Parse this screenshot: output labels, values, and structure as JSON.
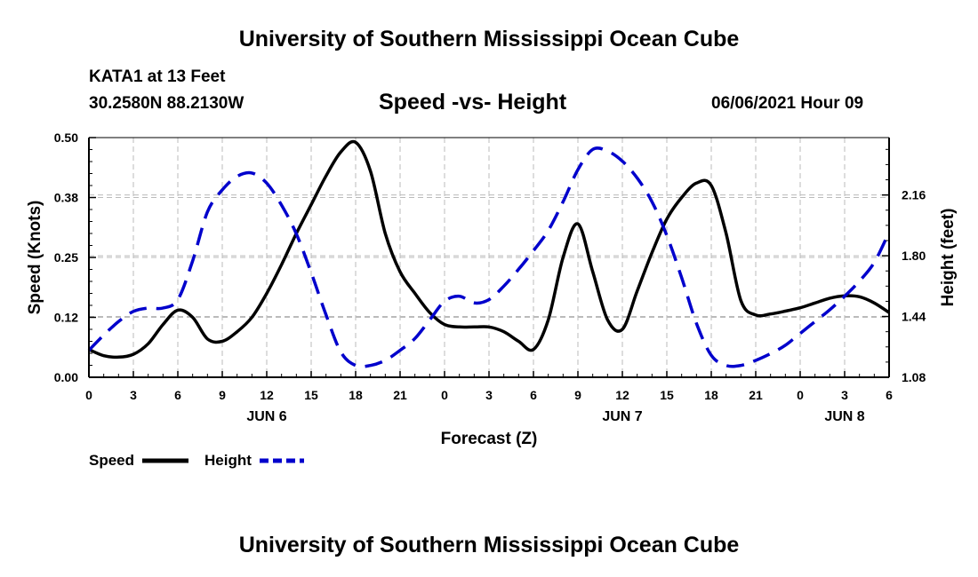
{
  "header": {
    "title": "University of Southern Mississippi Ocean Cube",
    "station": "KATA1 at 13 Feet",
    "coordinates": "30.2580N  88.2130W",
    "subtitle": "Speed -vs- Height",
    "datetime": "06/06/2021 Hour 09"
  },
  "footer": {
    "title": "University of Southern Mississippi Ocean Cube"
  },
  "legend": {
    "speed_label": "Speed",
    "height_label": "Height"
  },
  "colors": {
    "speed": "#000000",
    "height": "#0000cc",
    "grid": "#bbbbbb"
  },
  "chart_data": {
    "type": "line",
    "xlabel": "Forecast (Z)",
    "ylabel": "Speed (Knots)",
    "y2label": "Height (feet)",
    "xlim": [
      0,
      54
    ],
    "ylim": [
      0,
      0.5
    ],
    "y2lim": [
      1.08,
      2.5
    ],
    "x_tick_values": [
      0,
      3,
      6,
      9,
      12,
      15,
      18,
      21,
      24,
      27,
      30,
      33,
      36,
      39,
      42,
      45,
      48,
      51,
      54
    ],
    "x_tick_labels": [
      "0",
      "3",
      "6",
      "9",
      "12",
      "15",
      "18",
      "21",
      "0",
      "3",
      "6",
      "9",
      "12",
      "15",
      "18",
      "21",
      "0",
      "3",
      "6"
    ],
    "y_ticks": [
      0,
      0.125,
      0.25,
      0.375,
      0.5
    ],
    "y_tick_labels": [
      "0.00",
      "0.12",
      "0.25",
      "0.38",
      "0.50"
    ],
    "y2_ticks": [
      1.08,
      1.44,
      1.8,
      2.16
    ],
    "y2_tick_labels": [
      "1.08",
      "1.44",
      "1.80",
      "2.16"
    ],
    "day_labels": [
      {
        "x": 12,
        "label": "JUN 6"
      },
      {
        "x": 36,
        "label": "JUN 7"
      },
      {
        "x": 51,
        "label": "JUN 8"
      }
    ],
    "grid": true,
    "series": [
      {
        "name": "Speed",
        "axis": "left",
        "style": "solid",
        "x": [
          0,
          1,
          2,
          3,
          4,
          5,
          6,
          7,
          8,
          9,
          10,
          11,
          12,
          13,
          14,
          15,
          16,
          17,
          18,
          19,
          20,
          21,
          22,
          23,
          24,
          25,
          26,
          27,
          28,
          29,
          30,
          31,
          32,
          33,
          34,
          35,
          36,
          37,
          38,
          39,
          40,
          41,
          42,
          43,
          44,
          45,
          46,
          47,
          48,
          49,
          50,
          51,
          52,
          53,
          54
        ],
        "values": [
          0.058,
          0.045,
          0.042,
          0.048,
          0.07,
          0.11,
          0.14,
          0.125,
          0.08,
          0.075,
          0.095,
          0.125,
          0.175,
          0.235,
          0.3,
          0.36,
          0.42,
          0.47,
          0.49,
          0.43,
          0.3,
          0.22,
          0.175,
          0.135,
          0.11,
          0.105,
          0.105,
          0.105,
          0.095,
          0.075,
          0.058,
          0.12,
          0.25,
          0.32,
          0.22,
          0.12,
          0.1,
          0.18,
          0.26,
          0.33,
          0.375,
          0.405,
          0.4,
          0.3,
          0.16,
          0.13,
          0.132,
          0.138,
          0.145,
          0.155,
          0.165,
          0.17,
          0.168,
          0.155,
          0.135
        ]
      },
      {
        "name": "Height",
        "axis": "right",
        "style": "dashed",
        "x": [
          0,
          1,
          2,
          3,
          4,
          5,
          6,
          7,
          8,
          9,
          10,
          11,
          12,
          13,
          14,
          15,
          16,
          17,
          18,
          19,
          20,
          21,
          22,
          23,
          24,
          25,
          26,
          27,
          28,
          29,
          30,
          31,
          32,
          33,
          34,
          35,
          36,
          37,
          38,
          39,
          40,
          41,
          42,
          43,
          44,
          45,
          46,
          47,
          48,
          49,
          50,
          51,
          52,
          53,
          54
        ],
        "values": [
          1.24,
          1.33,
          1.41,
          1.47,
          1.49,
          1.49,
          1.54,
          1.77,
          2.06,
          2.19,
          2.27,
          2.29,
          2.23,
          2.1,
          1.93,
          1.7,
          1.45,
          1.23,
          1.15,
          1.15,
          1.18,
          1.24,
          1.31,
          1.42,
          1.53,
          1.56,
          1.52,
          1.54,
          1.62,
          1.72,
          1.83,
          1.95,
          2.12,
          2.31,
          2.43,
          2.42,
          2.36,
          2.26,
          2.12,
          1.92,
          1.67,
          1.4,
          1.21,
          1.15,
          1.15,
          1.18,
          1.22,
          1.27,
          1.34,
          1.41,
          1.48,
          1.56,
          1.65,
          1.76,
          1.94
        ]
      }
    ]
  }
}
